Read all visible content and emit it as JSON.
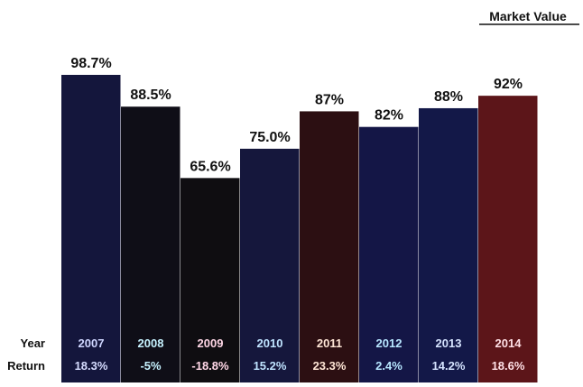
{
  "chart_data": {
    "type": "bar",
    "title": "Market Value",
    "categories": [
      "2007",
      "2008",
      "2009",
      "2010",
      "2011",
      "2012",
      "2013",
      "2014"
    ],
    "values": [
      98.7,
      88.5,
      65.6,
      75.0,
      87,
      82,
      88,
      92
    ],
    "value_labels": [
      "98.7%",
      "88.5%",
      "65.6%",
      "75.0%",
      "87%",
      "82%",
      "88%",
      "92%"
    ],
    "returns": [
      "18.3%",
      "-5%",
      "-18.8%",
      "15.2%",
      "23.3%",
      "2.4%",
      "14.2%",
      "18.6%"
    ],
    "row_labels": {
      "year": "Year",
      "return": "Return"
    },
    "bar_colors": [
      "#14163c",
      "#0f0e17",
      "#0f0d11",
      "#15173c",
      "#2c0f12",
      "#141646",
      "#131848",
      "#5c1519"
    ],
    "year_label_colors": [
      "#cfd6ff",
      "#c6f2ff",
      "#ffd6e6",
      "#bfe3ff",
      "#ffe6d6",
      "#b7e6ff",
      "#d6e4ff",
      "#ffe0e6"
    ],
    "return_label_colors": [
      "#d6dcff",
      "#c6f2ff",
      "#ffd6e6",
      "#bfe3ff",
      "#ffe6d6",
      "#b7e6ff",
      "#d6e4ff",
      "#ffe0e6"
    ],
    "ylim": [
      0,
      100
    ],
    "grid": false,
    "legend": "none"
  }
}
